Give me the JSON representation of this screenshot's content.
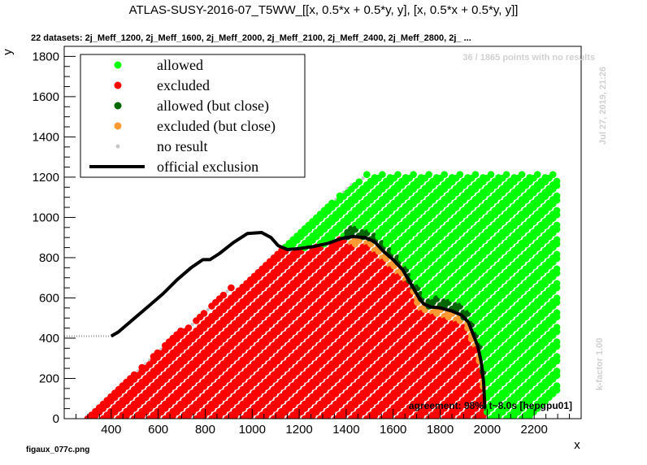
{
  "title": "ATLAS-SUSY-2016-07_T5WW_[[x, 0.5*x + 0.5*y, y], [x, 0.5*x + 0.5*y, y]]",
  "datasets_label": "22 datasets: 2j_Meff_1200, 2j_Meff_1600, 2j_Meff_2000, 2j_Meff_2100, 2j_Meff_2400, 2j_Meff_2800, 2j_ ...",
  "no_results_note": "36 / 1865 points with no results",
  "date_note": "Jul 27, 2019, 21:26",
  "kfactor_note": "k-factor 1.00",
  "agreement_note": "agreement: 98%, t~8.0s [hepgpu01]",
  "filename": "figaux_077c.png",
  "colors": {
    "allowed": "#00ff00",
    "excluded": "#ff0000",
    "allowed_close": "#006600",
    "excluded_close": "#ff9933",
    "no_result": "#c8c8c8",
    "official": "#000000",
    "watermark": "#d0d0d0"
  },
  "chart_data": {
    "type": "scatter",
    "xlabel": "x",
    "ylabel": "y",
    "xlim": [
      200,
      2400
    ],
    "ylim": [
      0,
      1850
    ],
    "x_ticks": [
      "400",
      "600",
      "800",
      "1000",
      "1200",
      "1400",
      "1600",
      "1800",
      "2000",
      "2200"
    ],
    "x_tick_values": [
      400,
      600,
      800,
      1000,
      1200,
      1400,
      1600,
      1800,
      2000,
      2200
    ],
    "y_ticks": [
      "0",
      "200",
      "400",
      "600",
      "800",
      "1000",
      "1200",
      "1400",
      "1600",
      "1800"
    ],
    "y_tick_values": [
      0,
      200,
      400,
      600,
      800,
      1000,
      1200,
      1400,
      1600,
      1800
    ],
    "legend": {
      "placement": "top-left",
      "entries": [
        "allowed",
        "excluded",
        "allowed (but close)",
        "excluded (but close)",
        "no result",
        "official exclusion"
      ]
    },
    "grid": "diagonal lattice, y <= x - 300 approx, spacing ~30 GeV",
    "official_exclusion": {
      "x": [
        400,
        430,
        500,
        560,
        620,
        680,
        740,
        790,
        820,
        860,
        920,
        980,
        1040,
        1080,
        1110,
        1150,
        1200,
        1260,
        1320,
        1380,
        1430,
        1480,
        1520,
        1560,
        1600,
        1640,
        1680,
        1710,
        1730,
        1760,
        1800,
        1850,
        1890,
        1920,
        1940,
        1960,
        1975,
        1985,
        1990
      ],
      "y": [
        410,
        430,
        500,
        560,
        620,
        690,
        750,
        790,
        790,
        820,
        875,
        920,
        925,
        900,
        860,
        840,
        845,
        855,
        870,
        895,
        905,
        900,
        880,
        830,
        790,
        740,
        660,
        600,
        570,
        555,
        550,
        535,
        515,
        480,
        420,
        360,
        280,
        180,
        50
      ]
    },
    "dotted_extension": {
      "x": [
        200,
        400
      ],
      "y": [
        410,
        410
      ]
    },
    "counts": {
      "total": 1865,
      "no_result": 36
    }
  }
}
